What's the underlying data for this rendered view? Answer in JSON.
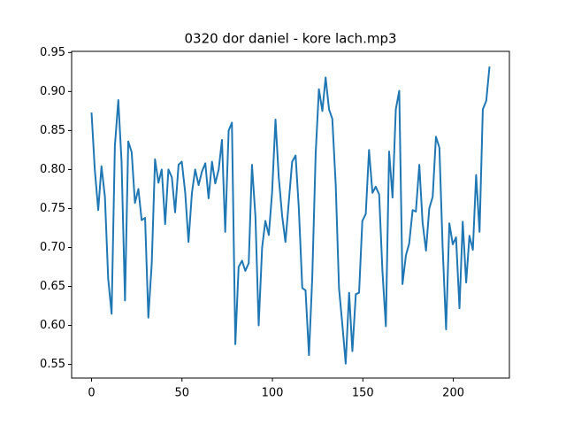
{
  "chart_data": {
    "type": "line",
    "title": "0320 dor daniel - kore lach.mp3",
    "x": [
      0,
      1.8,
      3.7,
      5.5,
      7.4,
      9.2,
      11.1,
      12.9,
      14.8,
      16.6,
      18.5,
      20.3,
      22.2,
      24.0,
      25.9,
      27.7,
      29.6,
      31.4,
      33.3,
      35.1,
      37.0,
      38.8,
      40.7,
      42.5,
      44.4,
      46.2,
      48.1,
      49.9,
      51.8,
      53.6,
      55.5,
      57.3,
      59.2,
      61.0,
      62.9,
      64.7,
      66.6,
      68.4,
      70.3,
      72.1,
      73.9,
      75.8,
      77.6,
      79.5,
      81.3,
      83.2,
      85.0,
      86.9,
      88.7,
      90.6,
      92.4,
      94.3,
      96.1,
      98.0,
      99.8,
      101.7,
      103.5,
      105.4,
      107.2,
      109.1,
      110.9,
      112.8,
      114.6,
      116.5,
      118.3,
      120.2,
      122.0,
      123.9,
      125.7,
      127.6,
      129.4,
      131.3,
      133.1,
      135.0,
      136.8,
      138.7,
      140.5,
      142.4,
      144.2,
      146.1,
      147.9,
      149.7,
      151.6,
      153.4,
      155.3,
      157.1,
      159.0,
      160.8,
      162.7,
      164.5,
      166.4,
      168.2,
      170.1,
      171.9,
      173.8,
      175.6,
      177.5,
      179.3,
      181.2,
      183.0,
      184.9,
      186.7,
      188.6,
      190.4,
      192.3,
      194.1,
      196.0,
      197.8,
      199.7,
      201.5,
      203.4,
      205.2,
      207.1,
      208.9,
      210.8,
      212.6,
      214.5,
      216.3,
      218.2,
      220.0
    ],
    "series": [
      {
        "color": "#1f77b4",
        "values": [
          0.873,
          0.8,
          0.748,
          0.804,
          0.765,
          0.66,
          0.615,
          0.83,
          0.889,
          0.81,
          0.632,
          0.836,
          0.822,
          0.757,
          0.775,
          0.735,
          0.738,
          0.61,
          0.68,
          0.813,
          0.783,
          0.8,
          0.73,
          0.8,
          0.79,
          0.745,
          0.806,
          0.81,
          0.77,
          0.707,
          0.77,
          0.8,
          0.78,
          0.797,
          0.808,
          0.763,
          0.81,
          0.782,
          0.8,
          0.838,
          0.72,
          0.85,
          0.86,
          0.576,
          0.675,
          0.683,
          0.67,
          0.68,
          0.806,
          0.74,
          0.6,
          0.7,
          0.734,
          0.716,
          0.77,
          0.864,
          0.79,
          0.74,
          0.707,
          0.76,
          0.81,
          0.818,
          0.75,
          0.648,
          0.645,
          0.562,
          0.66,
          0.82,
          0.903,
          0.875,
          0.918,
          0.877,
          0.865,
          0.78,
          0.648,
          0.6,
          0.551,
          0.642,
          0.567,
          0.64,
          0.642,
          0.734,
          0.743,
          0.825,
          0.77,
          0.778,
          0.768,
          0.67,
          0.599,
          0.823,
          0.764,
          0.877,
          0.901,
          0.653,
          0.69,
          0.705,
          0.748,
          0.746,
          0.806,
          0.732,
          0.696,
          0.75,
          0.765,
          0.842,
          0.828,
          0.7,
          0.595,
          0.731,
          0.704,
          0.713,
          0.622,
          0.733,
          0.655,
          0.715,
          0.697,
          0.793,
          0.72,
          0.877,
          0.888,
          0.932
        ]
      }
    ],
    "xlim": [
      -11,
      231
    ],
    "xticks": [
      0,
      50,
      100,
      150,
      200
    ],
    "ylim": [
      0.5325,
      0.9515
    ],
    "yticks": [
      0.55,
      {
        "value": 0.6,
        "label": "0.60"
      },
      0.65,
      {
        "value": 0.7,
        "label": "0.70"
      },
      0.75,
      {
        "value": 0.8,
        "label": "0.80"
      },
      0.85,
      {
        "value": 0.9,
        "label": "0.90"
      },
      0.95
    ]
  }
}
